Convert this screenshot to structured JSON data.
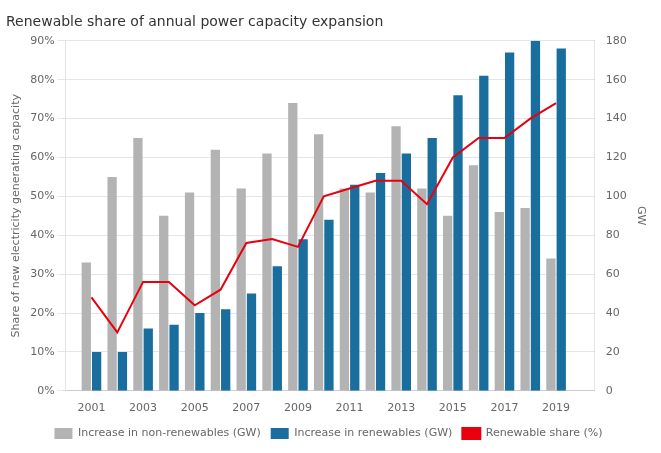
{
  "chart_data": {
    "type": "bar",
    "title": "Renewable share of annual power capacity expansion",
    "x": [
      2001,
      2002,
      2003,
      2004,
      2005,
      2006,
      2007,
      2008,
      2009,
      2010,
      2011,
      2012,
      2013,
      2014,
      2015,
      2016,
      2017,
      2018,
      2019
    ],
    "xlim": [
      2000,
      2020.5
    ],
    "xticks": [
      2001,
      2003,
      2005,
      2007,
      2009,
      2011,
      2013,
      2015,
      2017,
      2019
    ],
    "ylabel": "Share of new electricity generating capacity",
    "y2label": "GW",
    "ylim": [
      0,
      90
    ],
    "yticks": [
      {
        "value": 0,
        "label": "0%"
      },
      {
        "value": 10,
        "label": "10%"
      },
      {
        "value": 20,
        "label": "20%"
      },
      {
        "value": 30,
        "label": "30%"
      },
      {
        "value": 40,
        "label": "40%"
      },
      {
        "value": 50,
        "label": "50%"
      },
      {
        "value": 60,
        "label": "60%"
      },
      {
        "value": 70,
        "label": "70%"
      },
      {
        "value": 80,
        "label": "80%"
      },
      {
        "value": 90,
        "label": "90%"
      }
    ],
    "y2lim": [
      0,
      180
    ],
    "y2ticks": [
      0,
      20,
      40,
      60,
      80,
      100,
      120,
      140,
      160,
      180
    ],
    "grid": true,
    "legend": "bottom",
    "series": [
      {
        "name": "Increase in non-renewables (GW)",
        "type": "bar",
        "axis": "y2",
        "color": "#b3b3b3",
        "values": [
          66,
          110,
          130,
          90,
          102,
          124,
          104,
          122,
          148,
          132,
          104,
          102,
          136,
          104,
          90,
          116,
          92,
          94,
          68
        ]
      },
      {
        "name": "Increase in renewables (GW)",
        "type": "bar",
        "axis": "y2",
        "color": "#1a6e9e",
        "values": [
          20,
          20,
          32,
          34,
          40,
          42,
          50,
          64,
          78,
          88,
          106,
          112,
          122,
          130,
          152,
          162,
          174,
          180,
          176
        ]
      },
      {
        "name": "Renewable share (%)",
        "type": "line",
        "axis": "y",
        "color": "#e8000d",
        "values": [
          24,
          15,
          28,
          28,
          22,
          26,
          38,
          39,
          37,
          50,
          52,
          54,
          54,
          48,
          60,
          65,
          65,
          70,
          74
        ]
      }
    ]
  }
}
